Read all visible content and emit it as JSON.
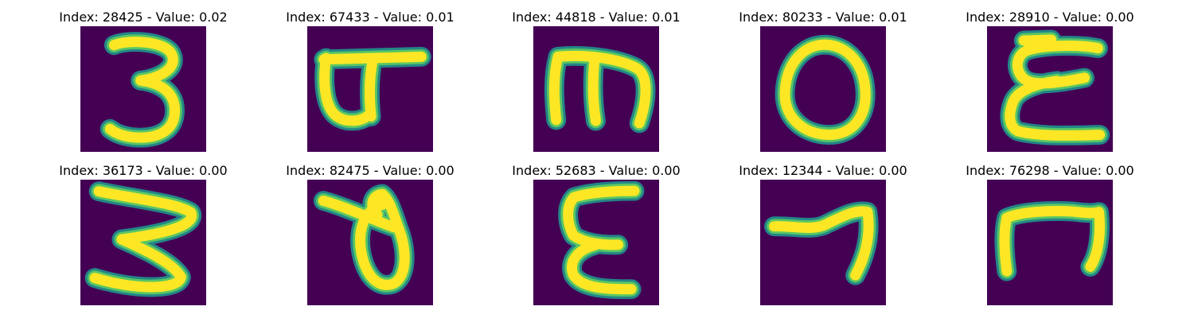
{
  "panels": [
    {
      "index": "28425",
      "value": "0.02",
      "title": "Index: 28425 - Value: 0.02",
      "glyph": "digit-three"
    },
    {
      "index": "67433",
      "value": "0.01",
      "title": "Index: 67433 - Value: 0.01",
      "glyph": "flag-shape"
    },
    {
      "index": "44818",
      "value": "0.01",
      "title": "Index: 44818 - Value: 0.01",
      "glyph": "m-shape"
    },
    {
      "index": "80233",
      "value": "0.01",
      "title": "Index: 80233 - Value: 0.01",
      "glyph": "digit-zero"
    },
    {
      "index": "28910",
      "value": "0.00",
      "title": "Index: 28910 - Value: 0.00",
      "glyph": "epsilon-shape"
    },
    {
      "index": "36173",
      "value": "0.00",
      "title": "Index: 36173 - Value: 0.00",
      "glyph": "digit-three-wide"
    },
    {
      "index": "82475",
      "value": "0.00",
      "title": "Index: 82475 - Value: 0.00",
      "glyph": "loop-shape"
    },
    {
      "index": "52683",
      "value": "0.00",
      "title": "Index: 52683 - Value: 0.00",
      "glyph": "epsilon-shape"
    },
    {
      "index": "12344",
      "value": "0.00",
      "title": "Index: 12344 - Value: 0.00",
      "glyph": "digit-seven"
    },
    {
      "index": "76298",
      "value": "0.00",
      "title": "Index: 76298 - Value: 0.00",
      "glyph": "n-shape"
    }
  ],
  "colors": {
    "background": "#440154",
    "low": "#21918c",
    "mid": "#5ec962",
    "high": "#fde725"
  }
}
